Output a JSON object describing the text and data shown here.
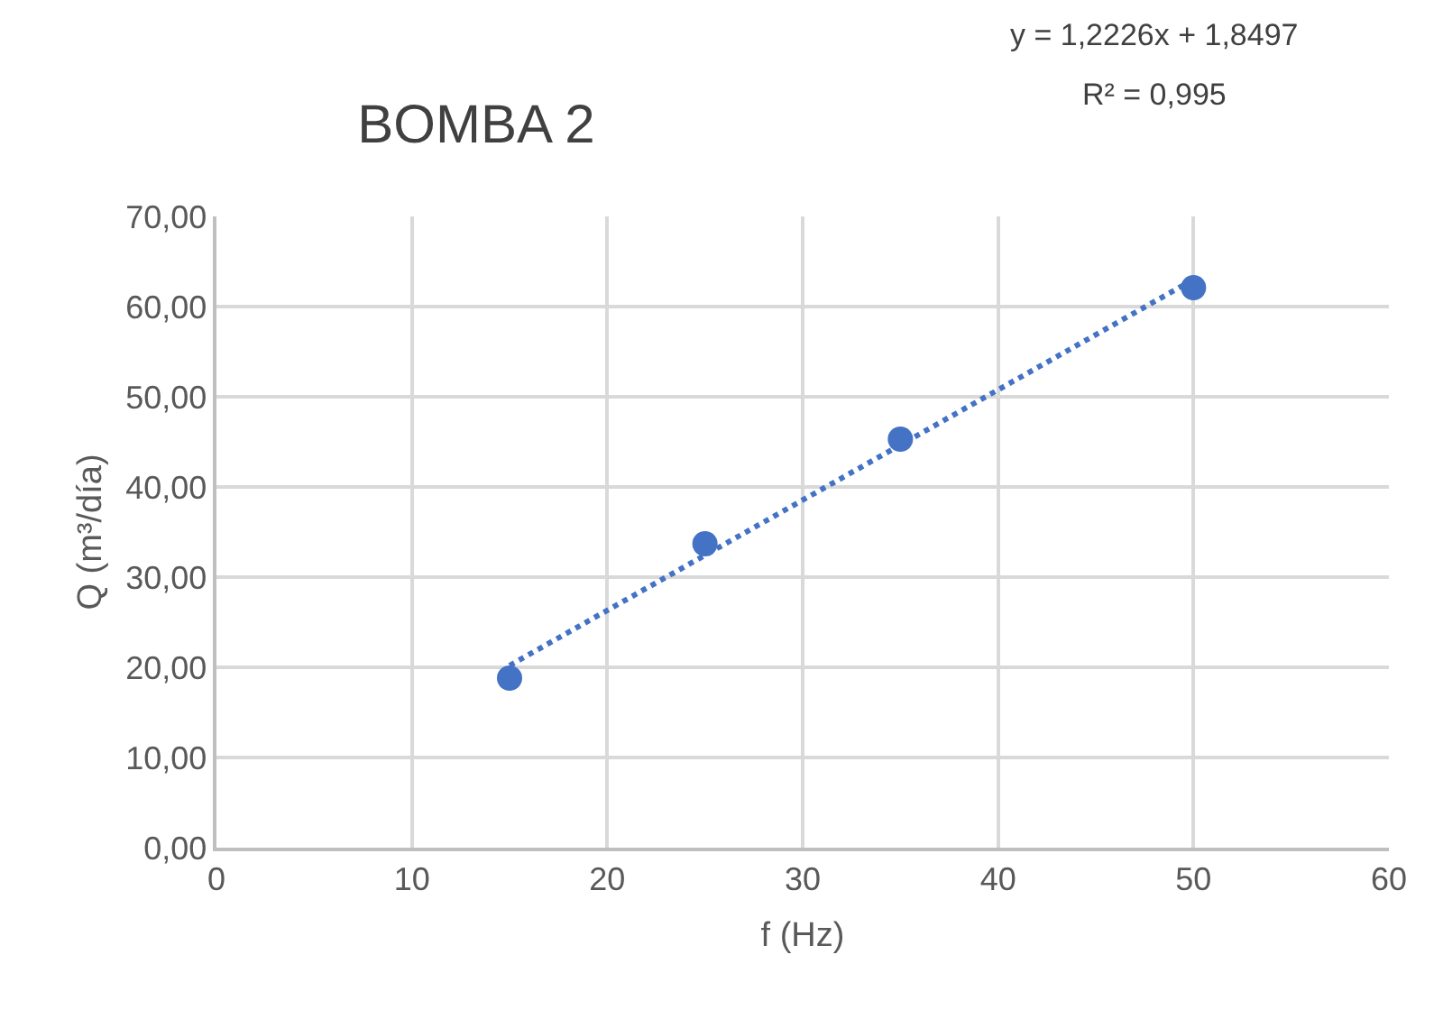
{
  "chart_data": {
    "type": "scatter",
    "title": "BOMBA 2",
    "xlabel": "f (Hz)",
    "ylabel": "Q (m³/día)",
    "series": [
      {
        "color": "#4472c4",
        "x": [
          15,
          25,
          35,
          50
        ],
        "values": [
          18.8,
          33.7,
          45.3,
          62.1
        ],
        "marker": "circle"
      },
      {
        "type": "line",
        "color": "#4472c4",
        "x": [
          15,
          50
        ],
        "values": [
          20.2,
          63.0
        ],
        "line_style": "dotted",
        "marker": "none"
      }
    ],
    "annotations": [
      "y = 1,2226x + 1,8497",
      "R² = 0,995"
    ],
    "xlim": [
      0,
      60
    ],
    "xticks": [
      0,
      10,
      20,
      30,
      40,
      50,
      60
    ],
    "ylim": [
      0,
      70
    ],
    "yticks": [
      {
        "value": 0,
        "label": "0,00"
      },
      {
        "value": 10,
        "label": "10,00"
      },
      {
        "value": 20,
        "label": "20,00"
      },
      {
        "value": 30,
        "label": "30,00"
      },
      {
        "value": 40,
        "label": "40,00"
      },
      {
        "value": 50,
        "label": "50,00"
      },
      {
        "value": 60,
        "label": "60,00"
      },
      {
        "value": 70,
        "label": "70,00"
      }
    ],
    "grid": true
  }
}
